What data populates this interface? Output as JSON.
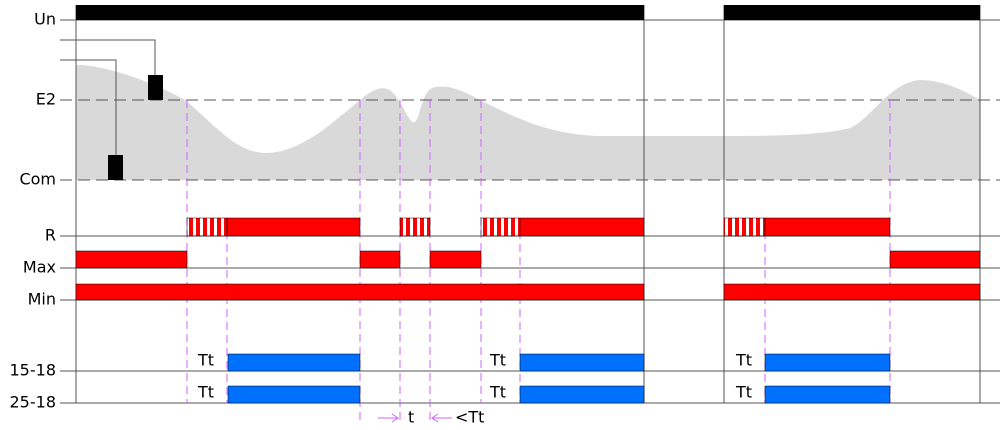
{
  "rows": {
    "un": "Un",
    "e2": "E2",
    "com": "Com",
    "r": "R",
    "max": "Max",
    "min": "Min",
    "out1": "15-18",
    "out2": "25-18"
  },
  "tt_labels": [
    "Tt",
    "Tt",
    "Tt",
    "Tt",
    "Tt",
    "Tt"
  ],
  "bottom": {
    "t": "t",
    "lt_tt": "<Tt"
  }
}
